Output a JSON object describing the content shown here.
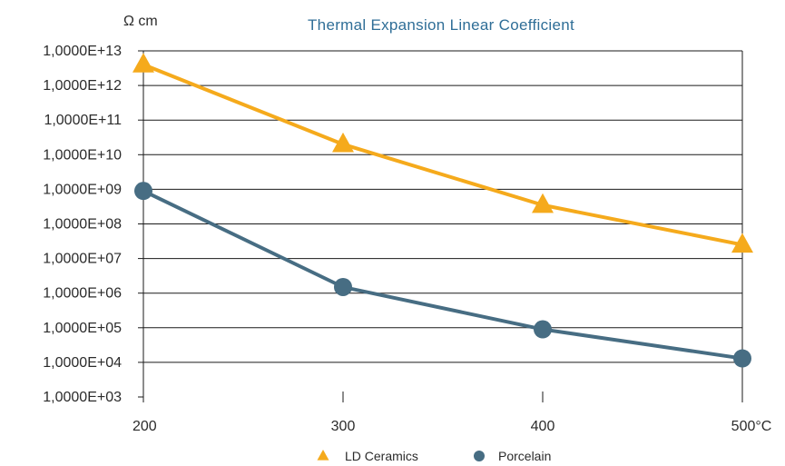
{
  "chart_data": {
    "type": "line",
    "title": "Thermal Expansion Linear Coefficient",
    "ylabel": "Ω cm",
    "xlabel": "",
    "y_scale": "log",
    "grid": true,
    "legend_position": "bottom",
    "x": [
      200,
      300,
      400,
      500
    ],
    "x_tick_labels": [
      "200",
      "300",
      "400",
      "500°C"
    ],
    "y_tick_labels": [
      "1,0000E+03",
      "1,0000E+04",
      "1,0000E+05",
      "1,0000E+06",
      "1,0000E+07",
      "1,0000E+08",
      "1,0000E+09",
      "1,0000E+10",
      "1,0000E+11",
      "1,0000E+12",
      "1,0000E+13"
    ],
    "y_tick_values": [
      1000.0,
      10000.0,
      100000.0,
      1000000.0,
      10000000.0,
      100000000.0,
      1000000000.0,
      10000000000.0,
      100000000000.0,
      1000000000000.0,
      10000000000000.0
    ],
    "ylim": [
      1000.0,
      10000000000000.0
    ],
    "series": [
      {
        "name": "LD Ceramics",
        "marker": "triangle",
        "color": "#f5aa1c",
        "values": [
          4000000000000.0,
          20000000000.0,
          350000000.0,
          25000000.0
        ]
      },
      {
        "name": "Porcelain",
        "marker": "circle",
        "color": "#476d83",
        "values": [
          900000000.0,
          1500000.0,
          90000.0,
          13000.0
        ]
      }
    ]
  }
}
